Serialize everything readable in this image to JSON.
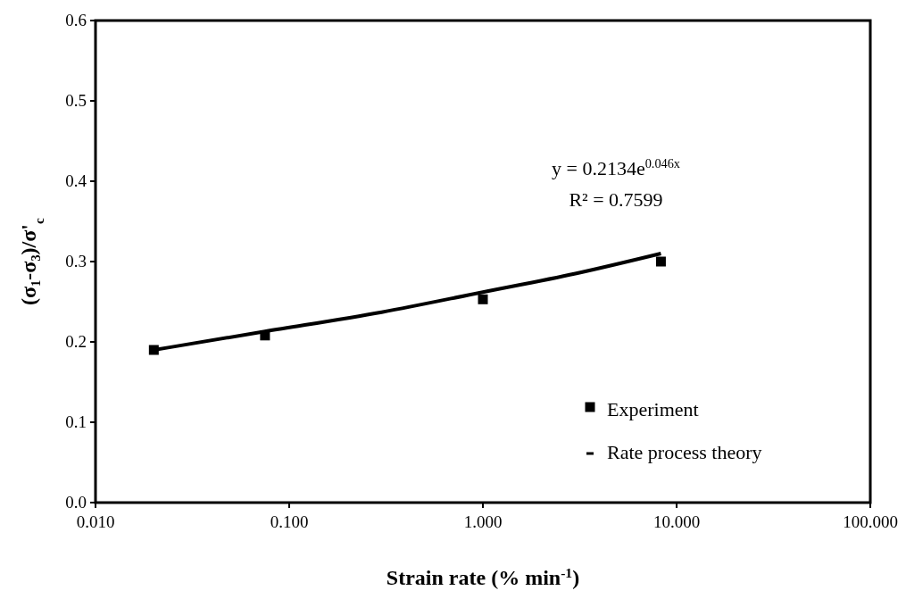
{
  "chart_data": {
    "type": "scatter",
    "xlabel": "Strain rate (% min$^{-1}$)",
    "ylabel": "(σ₁-σ₃)/σ'$_{c}$",
    "log": "x",
    "grid": false,
    "legend": "bottom right",
    "marker": "square",
    "xlim": [
      0.01,
      100
    ],
    "xticks": [
      {
        "value": 0.01,
        "label": "0.010"
      },
      {
        "value": 0.1,
        "label": "0.100"
      },
      {
        "value": 1,
        "label": "1.000"
      },
      {
        "value": 10,
        "label": "10.000"
      },
      {
        "value": 100,
        "label": "100.000"
      }
    ],
    "ylim": [
      0,
      0.6
    ],
    "yticks": [
      {
        "value": 0,
        "label": "0.0"
      },
      {
        "value": 0.1,
        "label": "0.1"
      },
      {
        "value": 0.2,
        "label": "0.2"
      },
      {
        "value": 0.3,
        "label": "0.3"
      },
      {
        "value": 0.4,
        "label": "0.4"
      },
      {
        "value": 0.5,
        "label": "0.5"
      },
      {
        "value": 0.6,
        "label": "0.6"
      }
    ],
    "annotations": [
      "y = 0.2134e$^{0.046x}$",
      "R² = 0.7599"
    ],
    "series": [
      {
        "name": "Experiment",
        "color": "#000000",
        "x": [
          0.02,
          0.075,
          1.0,
          8.3
        ],
        "values": [
          0.19,
          0.208,
          0.253,
          0.3
        ]
      },
      {
        "name": "Rate process theory",
        "type": "line",
        "color": "#000000",
        "marker": "none",
        "line_style": "solid",
        "x": [
          0.02,
          0.075,
          0.3,
          1.0,
          3.0,
          8.3
        ],
        "values": [
          0.19,
          0.213,
          0.237,
          0.262,
          0.285,
          0.31
        ]
      }
    ]
  }
}
